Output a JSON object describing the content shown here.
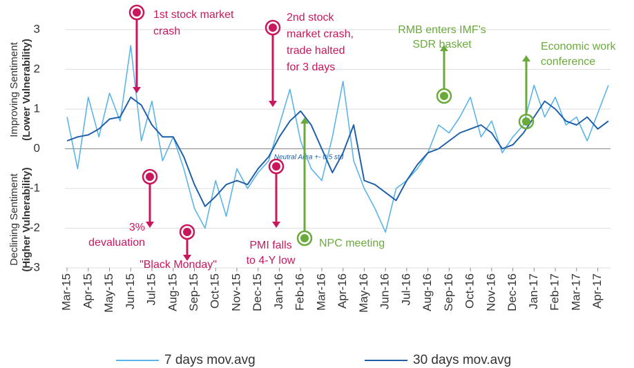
{
  "chart_data": {
    "type": "line",
    "x": [
      0,
      0.5,
      1,
      1.5,
      2,
      2.5,
      3,
      3.5,
      4,
      4.5,
      5,
      5.5,
      6,
      6.5,
      7,
      7.5,
      8,
      8.5,
      9,
      9.5,
      10,
      10.5,
      11,
      11.5,
      12,
      12.5,
      13,
      13.5,
      14,
      14.5,
      15,
      15.5,
      16,
      16.5,
      17,
      17.5,
      18,
      18.5,
      19,
      19.5,
      20,
      20.5,
      21,
      21.5,
      22,
      22.5,
      23,
      23.5,
      24,
      24.5,
      25,
      25.5
    ],
    "series": [
      {
        "name": "7 days mov.avg",
        "color": "#5ab4e8",
        "values": [
          0.8,
          -0.5,
          1.3,
          0.3,
          1.4,
          0.7,
          2.6,
          0.2,
          1.2,
          -0.3,
          0.3,
          -0.5,
          -1.5,
          -2.0,
          -0.8,
          -1.7,
          -0.5,
          -1.0,
          -0.6,
          -0.3,
          0.6,
          1.5,
          0.2,
          -0.5,
          -0.8,
          0.3,
          1.7,
          -0.3,
          -1.0,
          -1.5,
          -2.1,
          -1.0,
          -0.8,
          -0.5,
          -0.1,
          0.6,
          0.4,
          0.8,
          1.3,
          0.3,
          0.7,
          -0.1,
          0.3,
          0.6,
          1.6,
          0.8,
          1.3,
          0.6,
          0.8,
          0.2,
          0.9,
          1.6
        ]
      },
      {
        "name": "30 days mov.avg",
        "color": "#1f5fa8",
        "values": [
          0.2,
          0.3,
          0.35,
          0.5,
          0.75,
          0.8,
          1.3,
          1.1,
          0.6,
          0.3,
          0.3,
          -0.2,
          -0.9,
          -1.45,
          -1.2,
          -0.9,
          -0.8,
          -0.9,
          -0.5,
          -0.2,
          0.3,
          0.7,
          0.95,
          0.6,
          0.0,
          -0.6,
          -0.1,
          0.6,
          -0.8,
          -0.9,
          -1.1,
          -1.3,
          -0.8,
          -0.4,
          -0.1,
          0.0,
          0.2,
          0.4,
          0.5,
          0.6,
          0.4,
          0.0,
          0.1,
          0.4,
          0.8,
          1.2,
          1.0,
          0.7,
          0.6,
          0.8,
          0.5,
          0.7
        ]
      }
    ],
    "xlim": [
      -0.1,
      25.6
    ],
    "xticks": [
      {
        "value": 0,
        "label": "Mar-15"
      },
      {
        "value": 1,
        "label": "Apr-15"
      },
      {
        "value": 2,
        "label": "May-15"
      },
      {
        "value": 3,
        "label": "Jun-15"
      },
      {
        "value": 4,
        "label": "Jul-15"
      },
      {
        "value": 5,
        "label": "Aug-15"
      },
      {
        "value": 6,
        "label": "Sep-15"
      },
      {
        "value": 7,
        "label": "Oct-15"
      },
      {
        "value": 8,
        "label": "Nov-15"
      },
      {
        "value": 9,
        "label": "Dec-15"
      },
      {
        "value": 10,
        "label": "Jan-16"
      },
      {
        "value": 11,
        "label": "Feb-16"
      },
      {
        "value": 12,
        "label": "Mar-16"
      },
      {
        "value": 13,
        "label": "Apr-16"
      },
      {
        "value": 14,
        "label": "May-16"
      },
      {
        "value": 15,
        "label": "Jun-16"
      },
      {
        "value": 16,
        "label": "Jul-16"
      },
      {
        "value": 17,
        "label": "Aug-16"
      },
      {
        "value": 18,
        "label": "Sep-16"
      },
      {
        "value": 19,
        "label": "Oct-16"
      },
      {
        "value": 20,
        "label": "Nov-16"
      },
      {
        "value": 21,
        "label": "Dec-16"
      },
      {
        "value": 22,
        "label": "Jan-17"
      },
      {
        "value": 23,
        "label": "Feb-17"
      },
      {
        "value": 24,
        "label": "Mar-17"
      },
      {
        "value": 25,
        "label": "Apr-17"
      }
    ],
    "ylim": [
      -3,
      3
    ],
    "yticks": [
      -3,
      -2,
      -1,
      0,
      1,
      2,
      3
    ],
    "grid": true,
    "y_label_top": [
      "Improving Sentiment",
      "(Lower Vulnerability)"
    ],
    "y_label_bottom": [
      "Declining Sentiment",
      "(Higher Vulnerability)"
    ],
    "neutral_note": "Neutral Area +- 0.5 std",
    "annotations": [
      {
        "lines": [
          "1st stock market",
          "crash"
        ],
        "color": "#c8175d"
      },
      {
        "lines": [
          "3%",
          "devaluation"
        ],
        "color": "#c8175d"
      },
      {
        "lines": [
          "\"Black Monday\""
        ],
        "color": "#c8175d"
      },
      {
        "lines": [
          "2nd stock",
          "market crash,",
          "trade halted",
          "for 3 days"
        ],
        "color": "#c8175d"
      },
      {
        "lines": [
          "PMI falls",
          "to 4-Y low"
        ],
        "color": "#c8175d"
      },
      {
        "lines": [
          "NPC meeting"
        ],
        "color": "#6aaa3a"
      },
      {
        "lines": [
          "RMB enters IMF's",
          "SDR basket"
        ],
        "color": "#6aaa3a"
      },
      {
        "lines": [
          "Economic work",
          "conference"
        ],
        "color": "#6aaa3a"
      }
    ]
  }
}
